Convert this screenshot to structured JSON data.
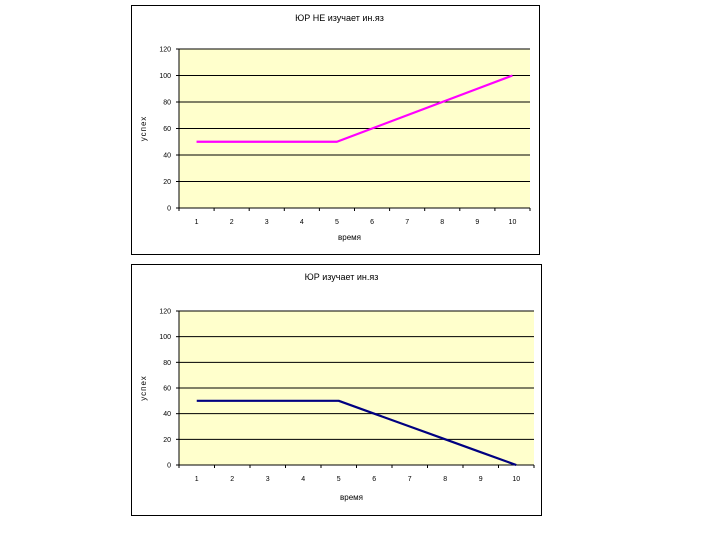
{
  "chart_data": [
    {
      "type": "line",
      "title": "ЮР НЕ изучает ин.яз",
      "xlabel": "время",
      "ylabel": "успех",
      "x": [
        1,
        2,
        3,
        4,
        5,
        6,
        7,
        8,
        9,
        10
      ],
      "series": [
        {
          "values": [
            50,
            50,
            50,
            50,
            50,
            60,
            70,
            80,
            90,
            100
          ],
          "color": "#FF00FF"
        }
      ],
      "ylim": [
        0,
        120
      ],
      "yticks": [
        0,
        20,
        40,
        60,
        80,
        100,
        120
      ],
      "grid": true,
      "plot_bg": "#FFFFCC"
    },
    {
      "type": "line",
      "title": "ЮР изучает ин.яз",
      "xlabel": "время",
      "ylabel": "успех",
      "x": [
        1,
        2,
        3,
        4,
        5,
        6,
        7,
        8,
        9,
        10
      ],
      "series": [
        {
          "values": [
            50,
            50,
            50,
            50,
            50,
            40,
            30,
            20,
            10,
            0
          ],
          "color": "#000080"
        }
      ],
      "ylim": [
        0,
        120
      ],
      "yticks": [
        0,
        20,
        40,
        60,
        80,
        100,
        120
      ],
      "grid": true,
      "plot_bg": "#FFFFCC"
    }
  ]
}
